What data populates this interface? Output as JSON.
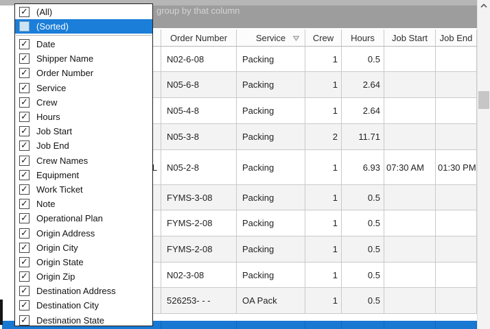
{
  "window": {
    "group_by_hint": "group by that column"
  },
  "column_chooser": {
    "items": [
      {
        "label": "(All)",
        "checked": true,
        "highlighted": false
      },
      {
        "label": "(Sorted)",
        "checked": false,
        "highlighted": true
      },
      {
        "label": "Date",
        "checked": true
      },
      {
        "label": "Shipper Name",
        "checked": true
      },
      {
        "label": "Order Number",
        "checked": true
      },
      {
        "label": "Service",
        "checked": true
      },
      {
        "label": "Crew",
        "checked": true
      },
      {
        "label": "Hours",
        "checked": true
      },
      {
        "label": "Job Start",
        "checked": true
      },
      {
        "label": "Job End",
        "checked": true
      },
      {
        "label": "Crew Names",
        "checked": true
      },
      {
        "label": "Equipment",
        "checked": true
      },
      {
        "label": "Work Ticket",
        "checked": true
      },
      {
        "label": "Note",
        "checked": true
      },
      {
        "label": "Operational Plan",
        "checked": true
      },
      {
        "label": "Origin Address",
        "checked": true
      },
      {
        "label": "Origin City",
        "checked": true
      },
      {
        "label": "Origin State",
        "checked": true
      },
      {
        "label": "Origin Zip",
        "checked": true
      },
      {
        "label": "Destination Address",
        "checked": true
      },
      {
        "label": "Destination City",
        "checked": true
      },
      {
        "label": "Destination State",
        "checked": true
      }
    ]
  },
  "table": {
    "columns": [
      "Order Number",
      "Service",
      "Crew",
      "Hours",
      "Job Start",
      "Job End"
    ],
    "sorted_column": "Service",
    "sort_direction": "descending",
    "rows": [
      {
        "cells": [
          "",
          "N02-6-08",
          "Packing",
          "1",
          "0.5",
          "",
          ""
        ]
      },
      {
        "cells": [
          "",
          "N05-6-8",
          "Packing",
          "1",
          "2.64",
          "",
          ""
        ]
      },
      {
        "cells": [
          "",
          "N05-4-8",
          "Packing",
          "1",
          "2.64",
          "",
          ""
        ]
      },
      {
        "cells": [
          "",
          "N05-3-8",
          "Packing",
          "2",
          "11.71",
          "",
          ""
        ]
      },
      {
        "cells": [
          "L",
          "N05-2-8",
          "Packing",
          "1",
          "6.93",
          "07:30 AM",
          "01:30 PM"
        ]
      },
      {
        "cells": [
          "",
          "FYMS-3-08",
          "Packing",
          "1",
          "0.5",
          "",
          ""
        ]
      },
      {
        "cells": [
          "",
          "FYMS-2-08",
          "Packing",
          "1",
          "0.5",
          "",
          ""
        ]
      },
      {
        "cells": [
          "",
          "FYMS-2-08",
          "Packing",
          "1",
          "0.5",
          "",
          ""
        ]
      },
      {
        "cells": [
          "",
          "N02-3-08",
          "Packing",
          "1",
          "0.5",
          "",
          ""
        ]
      },
      {
        "cells": [
          "",
          "526253- - -",
          "OA Pack",
          "1",
          "0.5",
          "",
          ""
        ]
      }
    ],
    "selected_row_visible": true
  },
  "colors": {
    "group_band": "#9d9d9d",
    "band_top_sliver": "#b6b6b6",
    "selection_blue": "#1878d2",
    "dropdown_highlight_blue": "#1b7ed9",
    "sorted_checkbox_fill": "#cde4f5",
    "grid_line": "#c9c9c9",
    "alt_row": "#f3f3f3"
  }
}
